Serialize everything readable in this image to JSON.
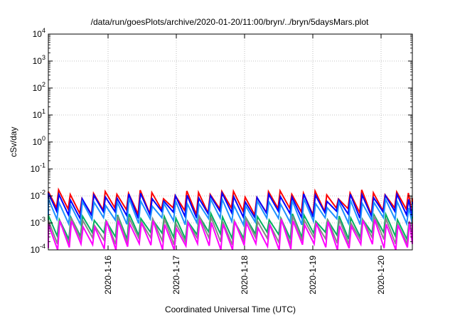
{
  "chart_data": {
    "type": "line",
    "title": "/data/run/goesPlots/archive/2020-01-20/11:00/bryn/../bryn/5daysMars.plot",
    "xlabel": "Coordinated Universal Time (UTC)",
    "ylabel": "cSv/day",
    "yscale": "log",
    "ylim": [
      0.0001,
      10000
    ],
    "xlim": [
      "2020-01-15T03:00",
      "2020-01-20T11:00"
    ],
    "x_ticks": [
      "2020-1-16",
      "2020-1-17",
      "2020-1-18",
      "2020-1-19",
      "2020-1-20"
    ],
    "y_ticks": [
      {
        "base": "10",
        "exp": "-4",
        "value": 0.0001
      },
      {
        "base": "10",
        "exp": "-3",
        "value": 0.001
      },
      {
        "base": "10",
        "exp": "-2",
        "value": 0.01
      },
      {
        "base": "10",
        "exp": "-1",
        "value": 0.1
      },
      {
        "base": "10",
        "exp": "0",
        "value": 1
      },
      {
        "base": "10",
        "exp": "1",
        "value": 10
      },
      {
        "base": "10",
        "exp": "2",
        "value": 100
      },
      {
        "base": "10",
        "exp": "3",
        "value": 1000
      },
      {
        "base": "10",
        "exp": "4",
        "value": 10000
      }
    ],
    "grid": true,
    "period_hours": 4.1,
    "series": [
      {
        "color": "#ff0000",
        "peak": 0.0125,
        "trough": 0.0028
      },
      {
        "color": "#0000ff",
        "peak": 0.0095,
        "trough": 0.0021
      },
      {
        "color": "#1e90ff",
        "peak": 0.0058,
        "trough": 0.0012
      },
      {
        "color": "#00b060",
        "peak": 0.0016,
        "trough": 0.00035
      },
      {
        "color": "#888888",
        "peak": 0.0013,
        "trough": 0.00022
      },
      {
        "color": "#ff00ff",
        "peak": 0.001,
        "trough": 0.00013
      }
    ]
  }
}
